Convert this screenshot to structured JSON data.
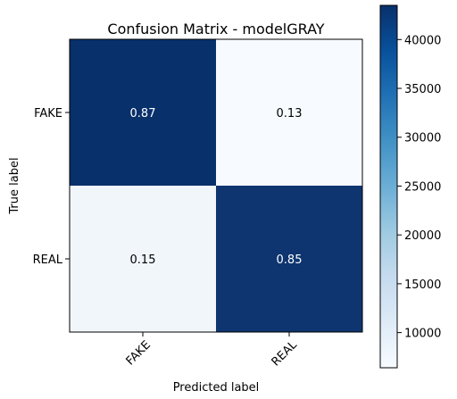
{
  "chart_data": {
    "type": "heatmap",
    "title": "Confusion Matrix - modelGRAY",
    "xlabel": "Predicted label",
    "ylabel": "True label",
    "x_categories": [
      "FAKE",
      "REAL"
    ],
    "y_categories": [
      "FAKE",
      "REAL"
    ],
    "values": [
      [
        0.87,
        0.13
      ],
      [
        0.15,
        0.85
      ]
    ],
    "value_labels": [
      [
        "0.87",
        "0.13"
      ],
      [
        "0.15",
        "0.85"
      ]
    ],
    "colorbar": {
      "colormap": "Blues",
      "range": [
        6400,
        43500
      ],
      "ticks": [
        10000,
        15000,
        20000,
        25000,
        30000,
        35000,
        40000
      ],
      "tick_labels": [
        "10000",
        "15000",
        "20000",
        "25000",
        "30000",
        "35000",
        "40000"
      ]
    },
    "colors": {
      "dark": "#08306b",
      "light": "#f7fbff"
    }
  }
}
